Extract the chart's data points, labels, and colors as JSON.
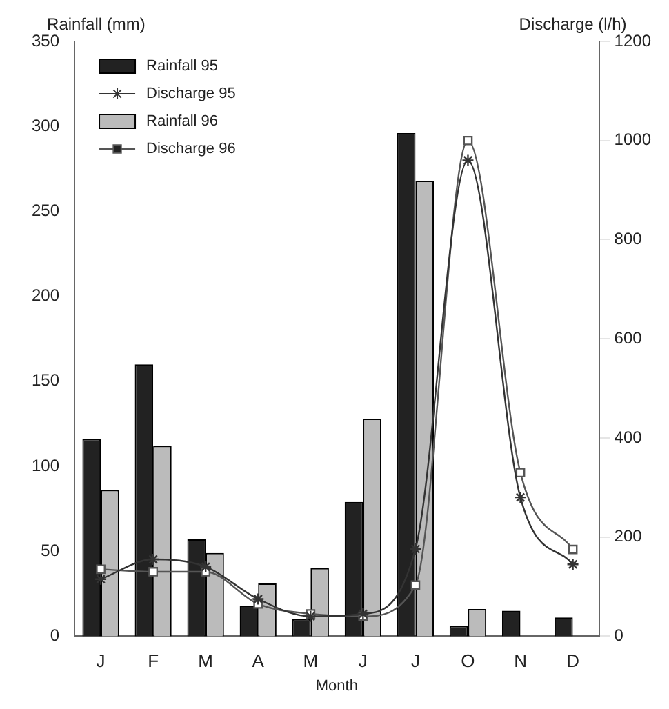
{
  "chart_data": {
    "type": "bar",
    "xlabel": "Month",
    "ylabel": "Rainfall (mm)",
    "y2label": "Discharge (l/h)",
    "categories": [
      "J",
      "F",
      "M",
      "A",
      "M",
      "J",
      "J",
      "O",
      "N",
      "D"
    ],
    "series": [
      {
        "name": "Rainfall 95",
        "color": "#222222",
        "values": [
          116,
          160,
          57,
          18,
          10,
          79,
          296,
          6,
          15,
          11
        ]
      },
      {
        "name": "Discharge 95",
        "type": "line",
        "axis": "y2",
        "marker": "cross",
        "color": "#333333",
        "values": [
          115,
          155,
          140,
          75,
          40,
          45,
          176,
          960,
          280,
          145
        ]
      },
      {
        "name": "Rainfall 96",
        "color": "#bbbbbb",
        "values": [
          86,
          112,
          49,
          31,
          40,
          128,
          268,
          16,
          null,
          null
        ]
      },
      {
        "name": "Discharge 96",
        "type": "line",
        "axis": "y2",
        "marker": "square",
        "color": "#555555",
        "values": [
          135,
          130,
          130,
          65,
          45,
          40,
          103,
          1000,
          330,
          175
        ]
      }
    ],
    "ylim": [
      0,
      350
    ],
    "yticks": [
      0,
      50,
      100,
      150,
      200,
      250,
      300,
      350
    ],
    "y2lim": [
      0,
      1200
    ],
    "y2ticks": [
      0,
      200,
      400,
      600,
      800,
      1000,
      1200
    ],
    "grid": false,
    "legend": "top left"
  }
}
